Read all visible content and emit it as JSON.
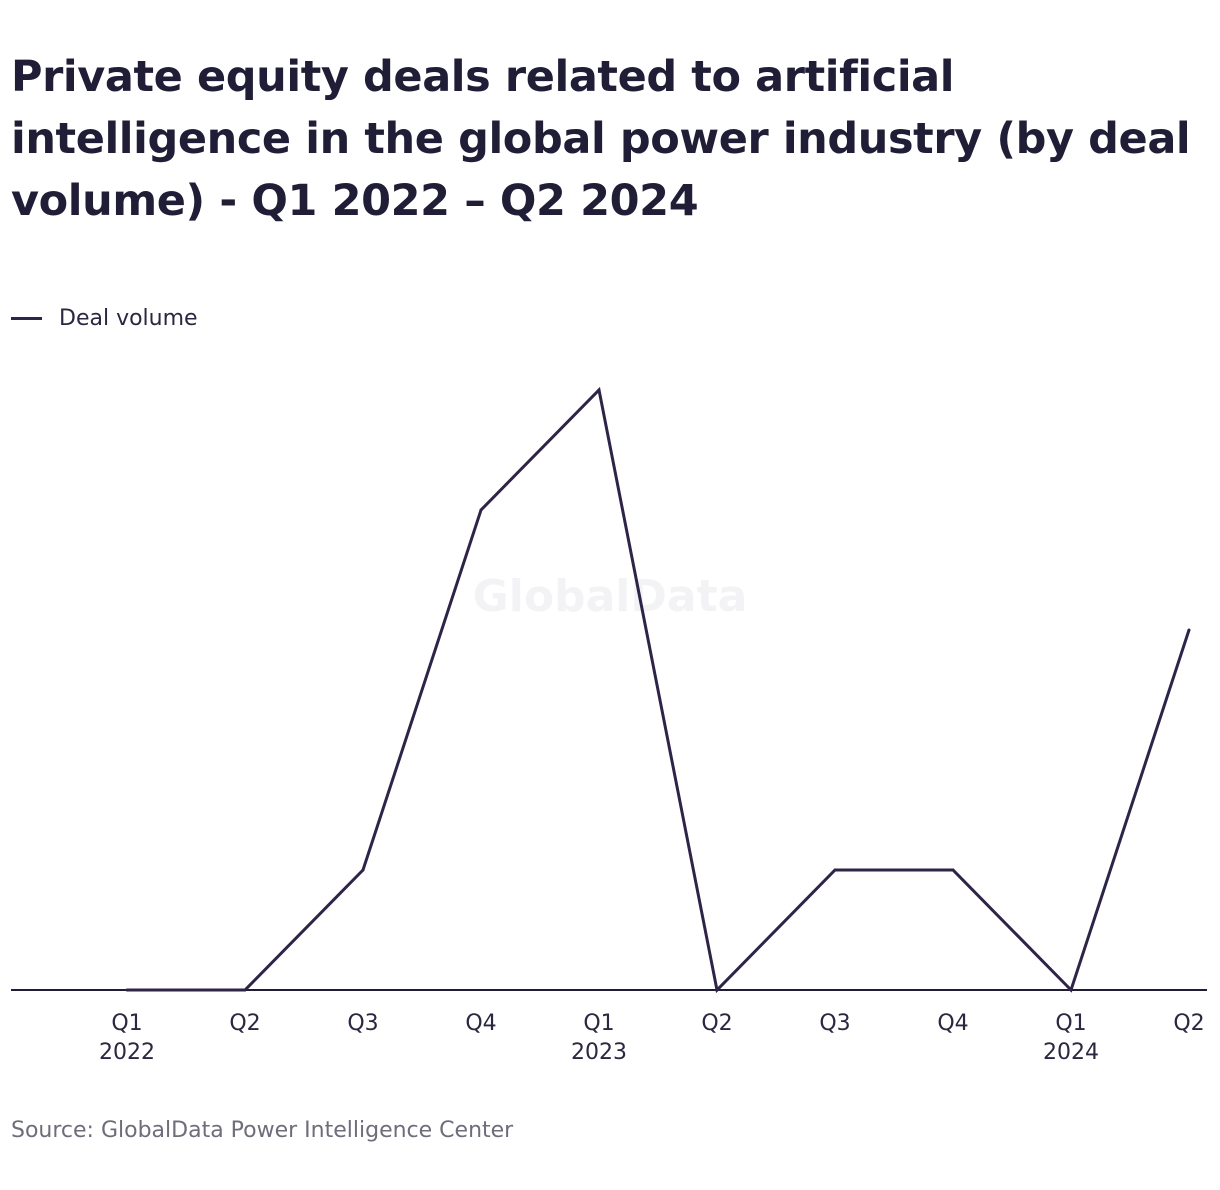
{
  "title": "Private equity deals related to artificial intelligence in the global power industry (by deal volume) - Q1 2022 – Q2 2024",
  "legend": {
    "label": "Deal volume"
  },
  "watermark": "GlobalData",
  "source": "Source: GlobalData Power Intelligence Center",
  "colors": {
    "line": "#2e2448",
    "axis": "#1f1d33",
    "tick_text": "#2a2840"
  },
  "chart_data": {
    "type": "line",
    "title": "Private equity deals related to artificial intelligence in the global power industry (by deal volume) - Q1 2022 – Q2 2024",
    "categories": [
      "Q1 2022",
      "Q2 2022",
      "Q3 2022",
      "Q4 2022",
      "Q1 2023",
      "Q2 2023",
      "Q3 2023",
      "Q4 2023",
      "Q1 2024",
      "Q2 2024"
    ],
    "tick_labels": [
      {
        "line1": "Q1",
        "line2": "2022"
      },
      {
        "line1": "Q2",
        "line2": ""
      },
      {
        "line1": "Q3",
        "line2": ""
      },
      {
        "line1": "Q4",
        "line2": ""
      },
      {
        "line1": "Q1",
        "line2": "2023"
      },
      {
        "line1": "Q2",
        "line2": ""
      },
      {
        "line1": "Q3",
        "line2": ""
      },
      {
        "line1": "Q4",
        "line2": ""
      },
      {
        "line1": "Q1",
        "line2": "2024"
      },
      {
        "line1": "Q2",
        "line2": ""
      }
    ],
    "series": [
      {
        "name": "Deal volume",
        "values": [
          0,
          0,
          1,
          4,
          5,
          0,
          1,
          1,
          0,
          3
        ]
      }
    ],
    "ylim": [
      0,
      5
    ],
    "grid": false,
    "legend_position": "top-left"
  }
}
